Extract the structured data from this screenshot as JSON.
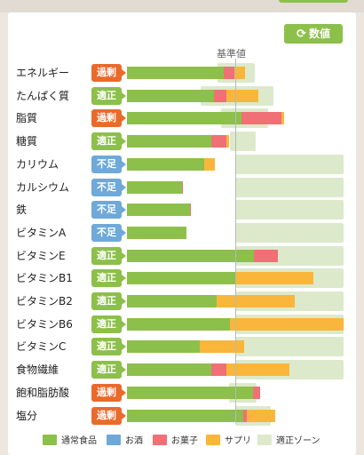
{
  "header": {
    "number_button_label": "数値",
    "number_button_icon": "refresh-icon",
    "reference_label": "基準値"
  },
  "colors": {
    "normal_food": "#8cc04a",
    "alcohol": "#6ea9d9",
    "snacks": "#f07075",
    "supplement": "#f9b63a",
    "ok_zone": "#dce9cb",
    "badge_excess": "#ea6a2c",
    "badge_ok": "#8cc04a",
    "badge_short": "#6ea9d9"
  },
  "chart_data": {
    "type": "bar",
    "orientation": "horizontal",
    "stacked": true,
    "reference_value": 100,
    "reference_label": "基準値",
    "categories": [
      "エネルギー",
      "たんぱく質",
      "脂質",
      "糖質",
      "カリウム",
      "カルシウム",
      "鉄",
      "ビタミンA",
      "ビタミンE",
      "ビタミンB1",
      "ビタミンB2",
      "ビタミンB6",
      "ビタミンC",
      "食物繊維",
      "飽和脂肪酸",
      "塩分"
    ],
    "status": [
      "過剰",
      "適正",
      "過剰",
      "適正",
      "不足",
      "不足",
      "不足",
      "不足",
      "適正",
      "適正",
      "適正",
      "適正",
      "適正",
      "適正",
      "過剰",
      "過剰"
    ],
    "series": [
      {
        "name": "通常食品",
        "values": [
          89,
          80,
          106,
          78,
          71,
          51,
          58,
          55,
          117,
          100,
          83,
          95,
          67,
          78,
          116,
          107
        ]
      },
      {
        "name": "お酒",
        "values": [
          0,
          0,
          0,
          0,
          0,
          0,
          0,
          0,
          0,
          0,
          0,
          0,
          0,
          0,
          0,
          0
        ]
      },
      {
        "name": "お菓子",
        "values": [
          10,
          12,
          37,
          14,
          0,
          1,
          1,
          0,
          22,
          0,
          0,
          0,
          0,
          14,
          7,
          4
        ]
      },
      {
        "name": "サプリ",
        "values": [
          10,
          29,
          2,
          2,
          10,
          0,
          0,
          0,
          0,
          72,
          72,
          105,
          41,
          58,
          0,
          26
        ]
      }
    ],
    "ok_zone": [
      [
        84,
        118
      ],
      [
        68,
        135
      ],
      [
        87,
        130
      ],
      [
        95,
        119
      ],
      [
        100,
        200
      ],
      [
        100,
        200
      ],
      [
        100,
        200
      ],
      [
        100,
        200
      ],
      [
        100,
        200
      ],
      [
        100,
        200
      ],
      [
        100,
        200
      ],
      [
        100,
        200
      ],
      [
        100,
        200
      ],
      [
        100,
        200
      ],
      [
        94,
        120
      ],
      [
        100,
        133
      ]
    ]
  },
  "legend": [
    {
      "label": "通常食品",
      "color": "#8cc04a"
    },
    {
      "label": "お酒",
      "color": "#6ea9d9"
    },
    {
      "label": "お菓子",
      "color": "#f07075"
    },
    {
      "label": "サプリ",
      "color": "#f9b63a"
    },
    {
      "label": "適正ゾーン",
      "color": "#dce9cb"
    }
  ]
}
